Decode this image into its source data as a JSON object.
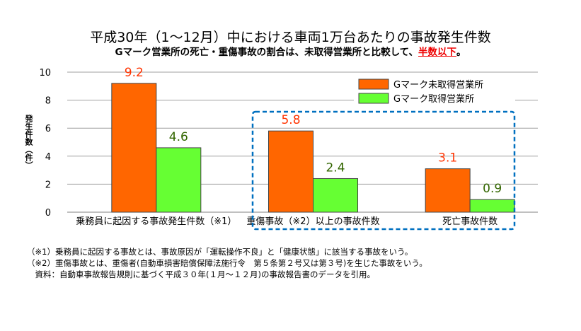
{
  "title": "平成30年（1～12月）中における車両1万台あたりの事故発生件数",
  "subtitle": {
    "before": "Gマーク営業所の死亡・重傷事故の割合は、未取得営業所と比較して、",
    "highlight": "半数以下",
    "after": "。"
  },
  "notes": [
    "（※1）乗務員に起因する事故とは、事故原因が「運転操作不良」と「健康状態」に該当する事故をいう。",
    "（※2）重傷事故とは、重傷者(自動車損害賠償保障法施行令　第５条第２号又は第３号)を生じた事故をいう。",
    "　資料：自動車事故報告規則に基づく平成３０年(１月～１２月)の事故報告書のデータを引用。"
  ],
  "chart_data": {
    "type": "bar",
    "categories": [
      "乗務員に起因する事故発生件数（※1）",
      "重傷事故（※2）以上の事故件数",
      "死亡事故件数"
    ],
    "series": [
      {
        "name": "Gマーク未取得営業所",
        "color": "#ff6600",
        "label_color": "#ff3300",
        "values": [
          9.2,
          5.8,
          3.1
        ]
      },
      {
        "name": "Gマーク取得営業所",
        "color": "#66ff33",
        "label_color": "#336600",
        "values": [
          4.6,
          2.4,
          0.9
        ]
      }
    ],
    "ylabel": "発生件数（件）",
    "ylim": [
      0,
      10
    ],
    "yticks": [
      0,
      2,
      4,
      6,
      8,
      10
    ],
    "grid": true,
    "legend": "top-right",
    "highlight_box_color": "#0070c0"
  }
}
